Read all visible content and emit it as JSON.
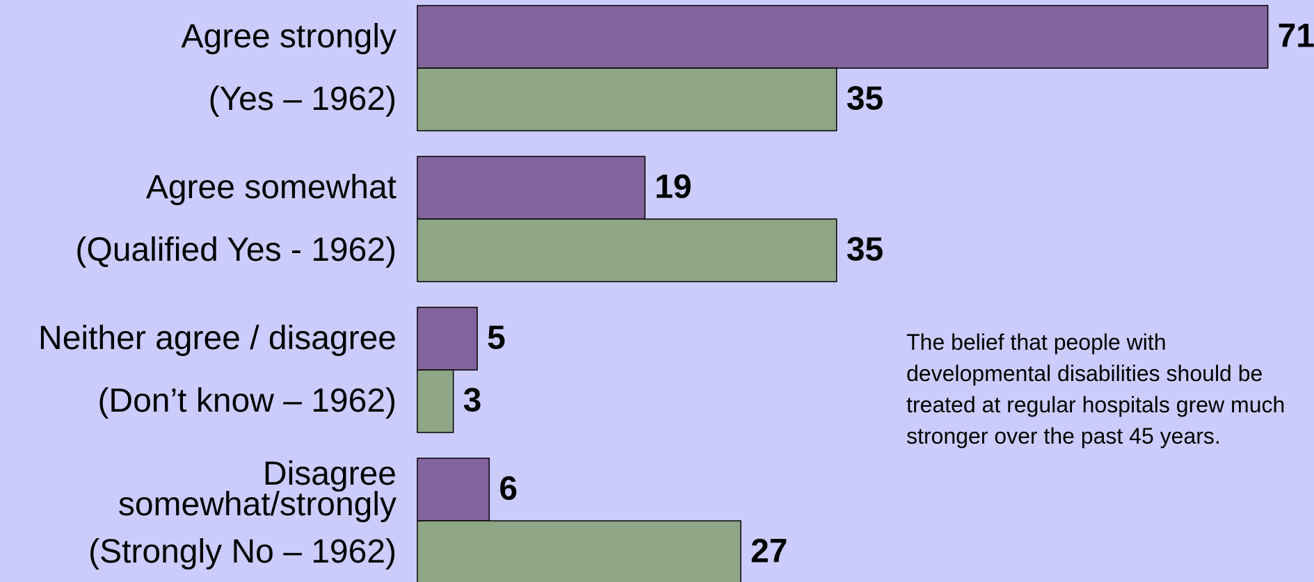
{
  "chart_data": {
    "type": "bar",
    "orientation": "horizontal",
    "categories": [
      "Agree strongly",
      "Agree somewhat",
      "Neither agree / disagree",
      "Disagree\nsomewhat/strongly"
    ],
    "series": [
      {
        "color": "#84649c",
        "values": [
          71,
          19,
          5,
          6
        ]
      },
      {
        "color": "#8ea686",
        "labels": [
          "(Yes – 1962)",
          "(Qualified Yes - 1962)",
          "(Don’t know – 1962)",
          "(Strongly No – 1962)"
        ],
        "values": [
          35,
          35,
          3,
          27
        ]
      }
    ],
    "annotation": "The belief that people with developmental disabilities should be treated at regular hospitals grew much stronger over the past 45 years."
  }
}
